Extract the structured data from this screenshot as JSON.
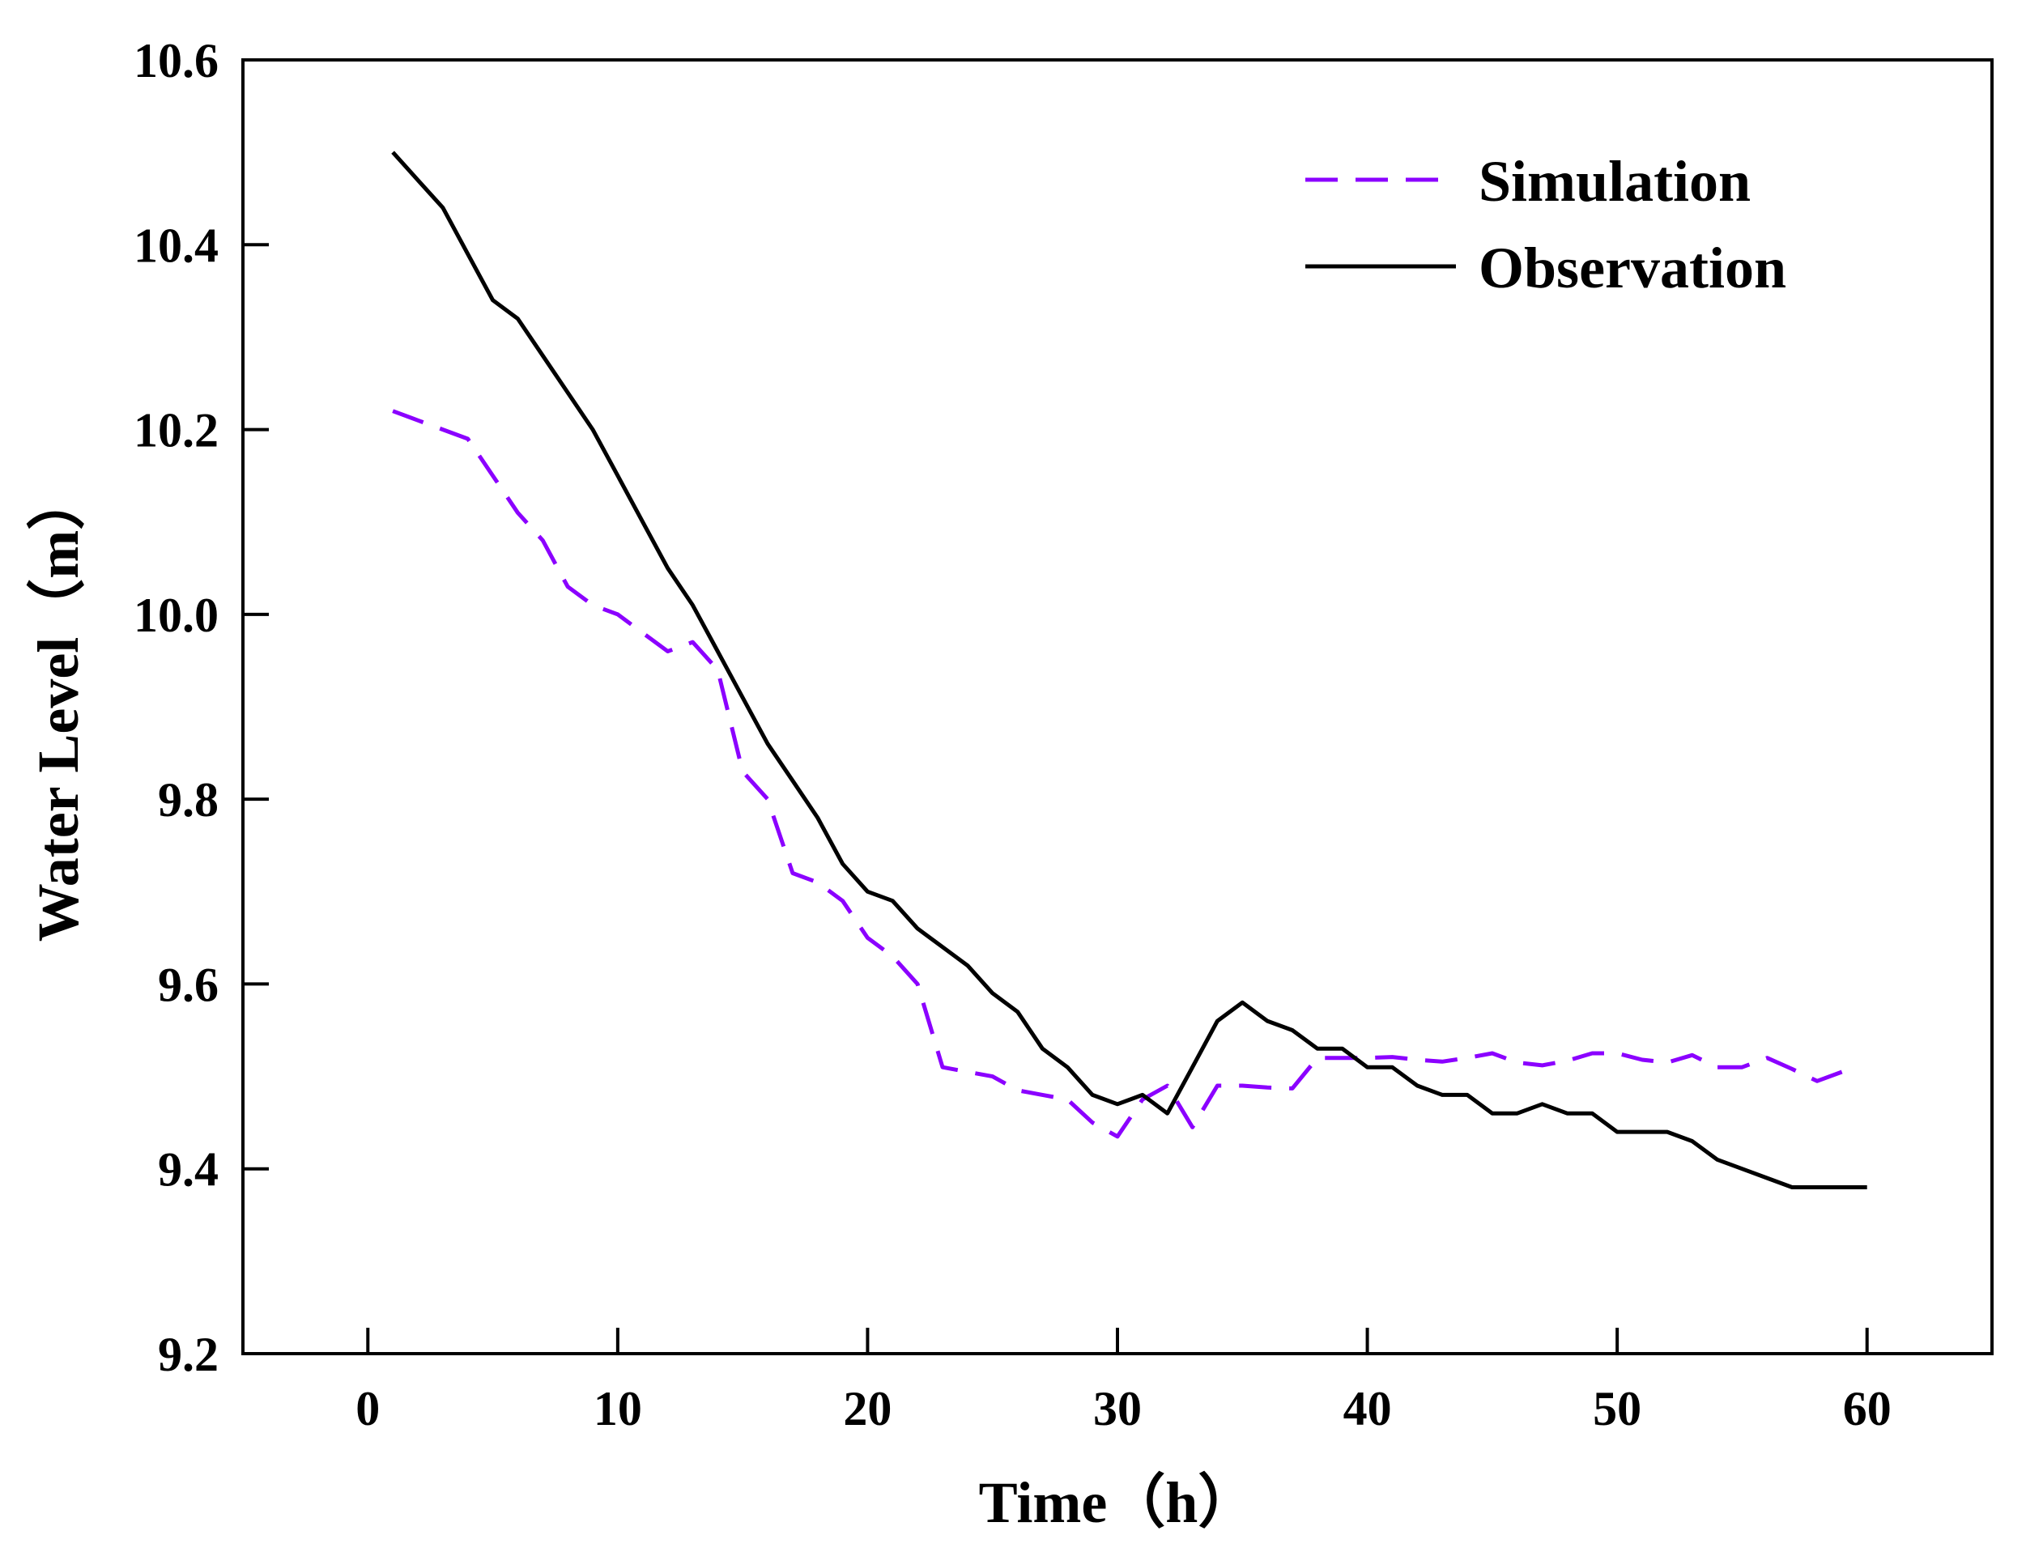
{
  "chart_data": {
    "type": "line",
    "title": "",
    "xlabel": "Time（h）",
    "ylabel": "Water Level（m）",
    "xlim": [
      -5,
      65
    ],
    "ylim": [
      9.2,
      10.6
    ],
    "xticks": [
      0,
      10,
      20,
      30,
      40,
      50,
      60
    ],
    "yticks": [
      9.2,
      9.4,
      9.6,
      9.8,
      10.0,
      10.2,
      10.4,
      10.6
    ],
    "xtick_labels": [
      "0",
      "10",
      "20",
      "30",
      "40",
      "50",
      "60"
    ],
    "ytick_labels": [
      "9.2",
      "9.4",
      "9.6",
      "9.8",
      "10.0",
      "10.2",
      "10.4",
      "10.6"
    ],
    "grid": false,
    "legend_position": "top-right",
    "series": [
      {
        "name": "Simulation",
        "style": "dashed",
        "color": "#8b00ff",
        "x": [
          1,
          2,
          3,
          4,
          5,
          6,
          7,
          8,
          9,
          10,
          11,
          12,
          13,
          14,
          15,
          16,
          17,
          18,
          19,
          20,
          21,
          22,
          23,
          24,
          25,
          26,
          27,
          28,
          29,
          30,
          31,
          32,
          33,
          34,
          35,
          36,
          37,
          38,
          39,
          40,
          41,
          42,
          43,
          44,
          45,
          46,
          47,
          48,
          49,
          50,
          51,
          52,
          53,
          54,
          55,
          56,
          57,
          58,
          59
        ],
        "values": [
          10.22,
          10.21,
          10.2,
          10.19,
          10.15,
          10.11,
          10.08,
          10.03,
          10.01,
          10.0,
          9.98,
          9.96,
          9.97,
          9.94,
          9.83,
          9.8,
          9.72,
          9.71,
          9.69,
          9.65,
          9.63,
          9.6,
          9.51,
          9.505,
          9.5,
          9.485,
          9.48,
          9.475,
          9.45,
          9.435,
          9.475,
          9.49,
          9.445,
          9.49,
          9.49,
          9.488,
          9.487,
          9.52,
          9.52,
          9.52,
          9.521,
          9.518,
          9.516,
          9.52,
          9.525,
          9.515,
          9.512,
          9.517,
          9.525,
          9.525,
          9.518,
          9.515,
          9.523,
          9.51,
          9.51,
          9.52,
          9.508,
          9.495,
          9.505
        ]
      },
      {
        "name": "Observation",
        "style": "solid",
        "color": "#000000",
        "x": [
          1,
          2,
          3,
          4,
          5,
          6,
          7,
          8,
          9,
          10,
          11,
          12,
          13,
          14,
          15,
          16,
          17,
          18,
          19,
          20,
          21,
          22,
          23,
          24,
          25,
          26,
          27,
          28,
          29,
          30,
          31,
          32,
          33,
          34,
          35,
          36,
          37,
          38,
          39,
          40,
          41,
          42,
          43,
          44,
          45,
          46,
          47,
          48,
          49,
          50,
          51,
          52,
          53,
          54,
          55,
          56,
          57,
          58,
          59,
          60
        ],
        "values": [
          10.5,
          10.47,
          10.44,
          10.39,
          10.34,
          10.32,
          10.28,
          10.24,
          10.2,
          10.15,
          10.1,
          10.05,
          10.01,
          9.96,
          9.91,
          9.86,
          9.82,
          9.78,
          9.73,
          9.7,
          9.69,
          9.66,
          9.64,
          9.62,
          9.59,
          9.57,
          9.53,
          9.51,
          9.48,
          9.47,
          9.48,
          9.46,
          9.51,
          9.56,
          9.58,
          9.56,
          9.55,
          9.53,
          9.53,
          9.51,
          9.51,
          9.49,
          9.48,
          9.48,
          9.46,
          9.46,
          9.47,
          9.46,
          9.46,
          9.44,
          9.44,
          9.44,
          9.43,
          9.41,
          9.4,
          9.39,
          9.38,
          9.38,
          9.38,
          9.38
        ]
      }
    ]
  }
}
